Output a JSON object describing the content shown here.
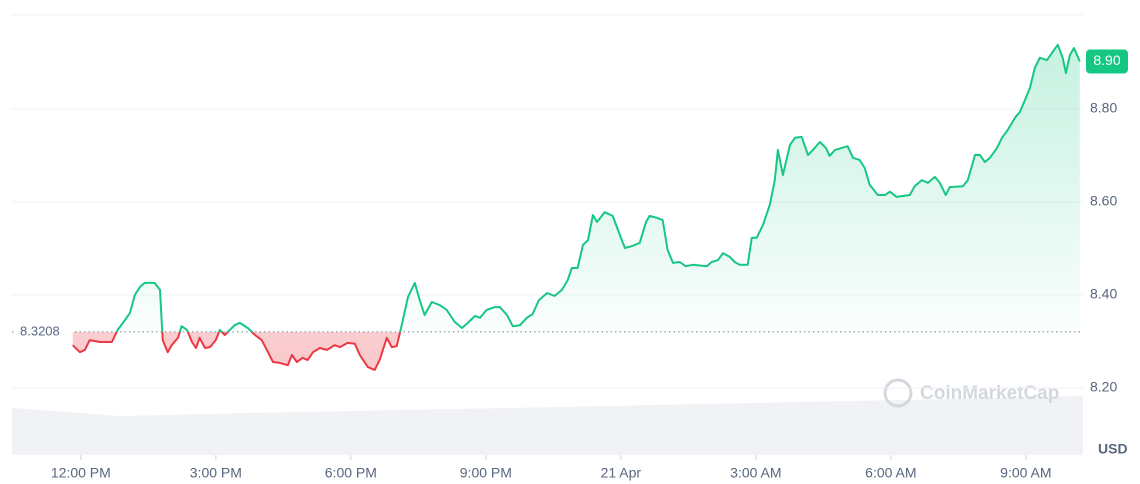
{
  "chart_data": {
    "type": "line",
    "x": [
      11.82,
      11.98,
      12.09,
      12.2,
      12.42,
      12.69,
      12.82,
      12.98,
      13.09,
      13.2,
      13.31,
      13.42,
      13.64,
      13.76,
      13.82,
      13.93,
      14.02,
      14.16,
      14.24,
      14.36,
      14.47,
      14.56,
      14.64,
      14.76,
      14.87,
      15.0,
      15.09,
      15.2,
      15.31,
      15.42,
      15.53,
      15.71,
      15.87,
      16.02,
      16.16,
      16.27,
      16.42,
      16.6,
      16.69,
      16.8,
      16.93,
      17.04,
      17.16,
      17.31,
      17.47,
      17.64,
      17.76,
      17.93,
      18.09,
      18.2,
      18.38,
      18.53,
      18.64,
      18.8,
      18.91,
      19.02,
      19.13,
      19.27,
      19.42,
      19.53,
      19.64,
      19.8,
      19.98,
      20.13,
      20.31,
      20.47,
      20.6,
      20.76,
      20.87,
      21.02,
      21.2,
      21.31,
      21.47,
      21.6,
      21.76,
      21.91,
      22.04,
      22.18,
      22.36,
      22.53,
      22.69,
      22.82,
      22.91,
      23.04,
      23.16,
      23.27,
      23.38,
      23.47,
      23.64,
      23.82,
      23.98,
      24.09,
      24.24,
      24.42,
      24.56,
      24.64,
      24.8,
      24.93,
      25.04,
      25.16,
      25.31,
      25.44,
      25.6,
      25.91,
      26.02,
      26.16,
      26.27,
      26.42,
      26.53,
      26.64,
      26.82,
      26.91,
      27.02,
      27.16,
      27.31,
      27.42,
      27.49,
      27.6,
      27.76,
      27.87,
      28.02,
      28.16,
      28.27,
      28.42,
      28.56,
      28.64,
      28.76,
      29.04,
      29.16,
      29.31,
      29.42,
      29.53,
      29.71,
      29.87,
      29.98,
      30.13,
      30.42,
      30.53,
      30.69,
      30.82,
      30.98,
      31.09,
      31.22,
      31.31,
      31.6,
      31.71,
      31.87,
      31.98,
      32.09,
      32.2,
      32.36,
      32.47,
      32.6,
      32.76,
      32.87,
      32.98,
      33.09,
      33.2,
      33.31,
      33.47,
      33.6,
      33.71,
      33.82,
      33.89,
      33.98,
      34.07,
      34.2
    ],
    "values": [
      8.292,
      8.277,
      8.282,
      8.303,
      8.299,
      8.299,
      8.325,
      8.346,
      8.361,
      8.4,
      8.417,
      8.426,
      8.426,
      8.411,
      8.303,
      8.277,
      8.292,
      8.308,
      8.333,
      8.325,
      8.299,
      8.286,
      8.308,
      8.286,
      8.288,
      8.303,
      8.325,
      8.314,
      8.325,
      8.335,
      8.34,
      8.329,
      8.314,
      8.303,
      8.277,
      8.256,
      8.254,
      8.249,
      8.271,
      8.256,
      8.265,
      8.26,
      8.277,
      8.286,
      8.282,
      8.292,
      8.288,
      8.297,
      8.295,
      8.271,
      8.245,
      8.239,
      8.26,
      8.308,
      8.288,
      8.29,
      8.335,
      8.396,
      8.426,
      8.389,
      8.357,
      8.385,
      8.378,
      8.368,
      8.342,
      8.329,
      8.34,
      8.355,
      8.351,
      8.368,
      8.374,
      8.374,
      8.357,
      8.333,
      8.335,
      8.351,
      8.359,
      8.389,
      8.404,
      8.398,
      8.411,
      8.432,
      8.458,
      8.458,
      8.508,
      8.518,
      8.572,
      8.557,
      8.578,
      8.57,
      8.529,
      8.501,
      8.505,
      8.512,
      8.557,
      8.57,
      8.566,
      8.561,
      8.497,
      8.469,
      8.471,
      8.462,
      8.465,
      8.462,
      8.471,
      8.475,
      8.49,
      8.482,
      8.471,
      8.465,
      8.465,
      8.523,
      8.523,
      8.551,
      8.594,
      8.647,
      8.712,
      8.658,
      8.723,
      8.738,
      8.74,
      8.701,
      8.712,
      8.729,
      8.716,
      8.699,
      8.712,
      8.72,
      8.695,
      8.69,
      8.673,
      8.637,
      8.615,
      8.615,
      8.622,
      8.611,
      8.615,
      8.634,
      8.647,
      8.641,
      8.654,
      8.641,
      8.615,
      8.632,
      8.634,
      8.647,
      8.701,
      8.701,
      8.686,
      8.695,
      8.716,
      8.738,
      8.755,
      8.781,
      8.794,
      8.819,
      8.845,
      8.888,
      8.91,
      8.905,
      8.923,
      8.938,
      8.91,
      8.877,
      8.916,
      8.931,
      8.902
    ],
    "up_color": "#16c784",
    "down_color": "#ea3943",
    "baseline": 8.3208,
    "price_label": "8.90",
    "xlim": [
      10.47,
      34.27
    ],
    "xticks": [
      {
        "value": 12,
        "label": "12:00 PM"
      },
      {
        "value": 15,
        "label": "3:00 PM"
      },
      {
        "value": 18,
        "label": "6:00 PM"
      },
      {
        "value": 21,
        "label": "9:00 PM"
      },
      {
        "value": 24,
        "label": "21 Apr"
      },
      {
        "value": 27,
        "label": "3:00 AM"
      },
      {
        "value": 30,
        "label": "6:00 AM"
      },
      {
        "value": 33,
        "label": "9:00 AM"
      }
    ],
    "ylim": [
      8.056,
      9.002
    ],
    "yticks": [
      {
        "value": 8.2,
        "label": "8.20"
      },
      {
        "value": 8.4,
        "label": "8.40"
      },
      {
        "value": 8.6,
        "label": "8.60"
      },
      {
        "value": 8.8,
        "label": "8.80"
      }
    ],
    "y_unit": "USD",
    "watermark": "CoinMarketCap",
    "grid": true
  }
}
